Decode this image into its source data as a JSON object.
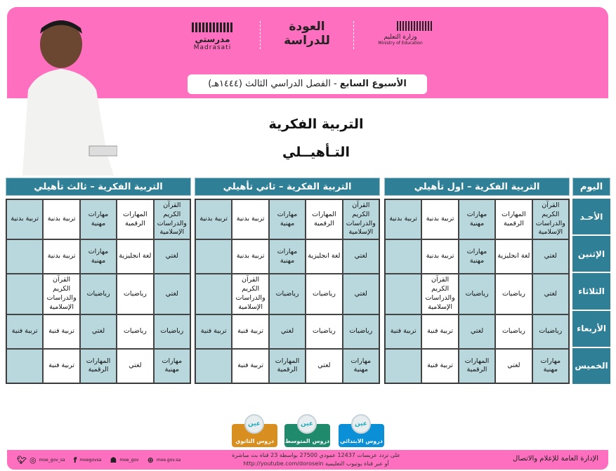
{
  "header": {
    "madrasati_ar": "مدرستي",
    "madrasati_en": "Madrasati",
    "back_to_school": "العودة للدراسة",
    "ministry_ar": "وزارة التعليم",
    "ministry_en": "Ministry of Education",
    "week_bold": "الأسبوع السابع",
    "week_rest": " - الفصل الدراسي الثالث (١٤٤٤هـ)",
    "pink": "#ff6fbf"
  },
  "titles": {
    "main": "التربية الفكرية",
    "sub": "التـأهيــلي"
  },
  "day_header": "اليوم",
  "days": [
    "الأحـد",
    "الإثنين",
    "الثلاثاء",
    "الأربعاء",
    "الخميس"
  ],
  "colors": {
    "teal": "#2f7f96",
    "light": "#b9d8dd"
  },
  "tables": [
    {
      "title": "التربية الفكرية – اول تأهيلي",
      "rows": [
        [
          "القرآن الكريم والدراسات الإسلامية",
          "المهارات الرقمية",
          "مهارات مهنية",
          "تربية بدنية",
          "تربية بدنية"
        ],
        [
          "لغتي",
          "لغة انجليزية",
          "مهارات مهنية",
          "تربية بدنية",
          ""
        ],
        [
          "لغتي",
          "رياضيات",
          "رياضيات",
          "القرآن الكريم والدراسات الإسلامية",
          ""
        ],
        [
          "رياضيات",
          "رياضيات",
          "لغتي",
          "تربية فنية",
          "تربية فنية"
        ],
        [
          "مهارات مهنية",
          "لغتي",
          "المهارات الرقمية",
          "تربية فنية",
          ""
        ]
      ]
    },
    {
      "title": "التربية الفكرية – ثاني تأهيلي",
      "rows": [
        [
          "القرآن الكريم والدراسات الإسلامية",
          "المهارات الرقمية",
          "مهارات مهنية",
          "تربية بدنية",
          "تربية بدنية"
        ],
        [
          "لغتي",
          "لغة انجليزية",
          "مهارات مهنية",
          "تربية بدنية",
          ""
        ],
        [
          "لغتي",
          "رياضيات",
          "رياضيات",
          "القرآن الكريم والدراسات الإسلامية",
          ""
        ],
        [
          "رياضيات",
          "رياضيات",
          "لغتي",
          "تربية فنية",
          "تربية فنية"
        ],
        [
          "مهارات مهنية",
          "لغتي",
          "المهارات الرقمية",
          "تربية فنية",
          ""
        ]
      ]
    },
    {
      "title": "التربية الفكرية – ثالث تأهيلي",
      "rows": [
        [
          "القرآن الكريم والدراسات الإسلامية",
          "المهارات الرقمية",
          "مهارات مهنية",
          "تربية بدنية",
          "تربية بدنية"
        ],
        [
          "لغتي",
          "لغة انجليزية",
          "مهارات مهنية",
          "تربية بدنية",
          ""
        ],
        [
          "لغتي",
          "رياضيات",
          "رياضيات",
          "القرآن الكريم والدراسات الإسلامية",
          ""
        ],
        [
          "رياضيات",
          "رياضيات",
          "لغتي",
          "تربية فنية",
          "تربية فنية"
        ],
        [
          "مهارات مهنية",
          "لغتي",
          "المهارات الرقمية",
          "تربية فنية",
          ""
        ]
      ]
    }
  ],
  "ein": {
    "badge": "عين",
    "buttons": [
      {
        "label": "دروس الابتدائي",
        "color": "#0b8fd6"
      },
      {
        "label": "دروس المتوسط",
        "color": "#1f8a6c"
      },
      {
        "label": "دروس الثانوي",
        "color": "#d98f1f"
      }
    ]
  },
  "footer": {
    "line1": "على تردد عربسات 12437 عمودي 27500 بواسطة 23 قناة بث مباشرة",
    "line2": "أو عبر قناة يوتيوب التعليمية http://youtube.com/dorosein",
    "social": [
      {
        "icon": "twitter-icon",
        "glyph": "🐦︎"
      },
      {
        "icon": "instagram-icon",
        "glyph": "◎",
        "handle": "moe_gov_sa"
      },
      {
        "icon": "facebook-icon",
        "glyph": "f",
        "handle": "moegovsa"
      },
      {
        "icon": "snapchat-icon",
        "glyph": "☗",
        "handle": "moe_gov"
      },
      {
        "icon": "globe-icon",
        "glyph": "⊕",
        "handle": "moe.gov.sa"
      }
    ],
    "dept": "الإدارة العامة للإعلام والاتصال"
  }
}
